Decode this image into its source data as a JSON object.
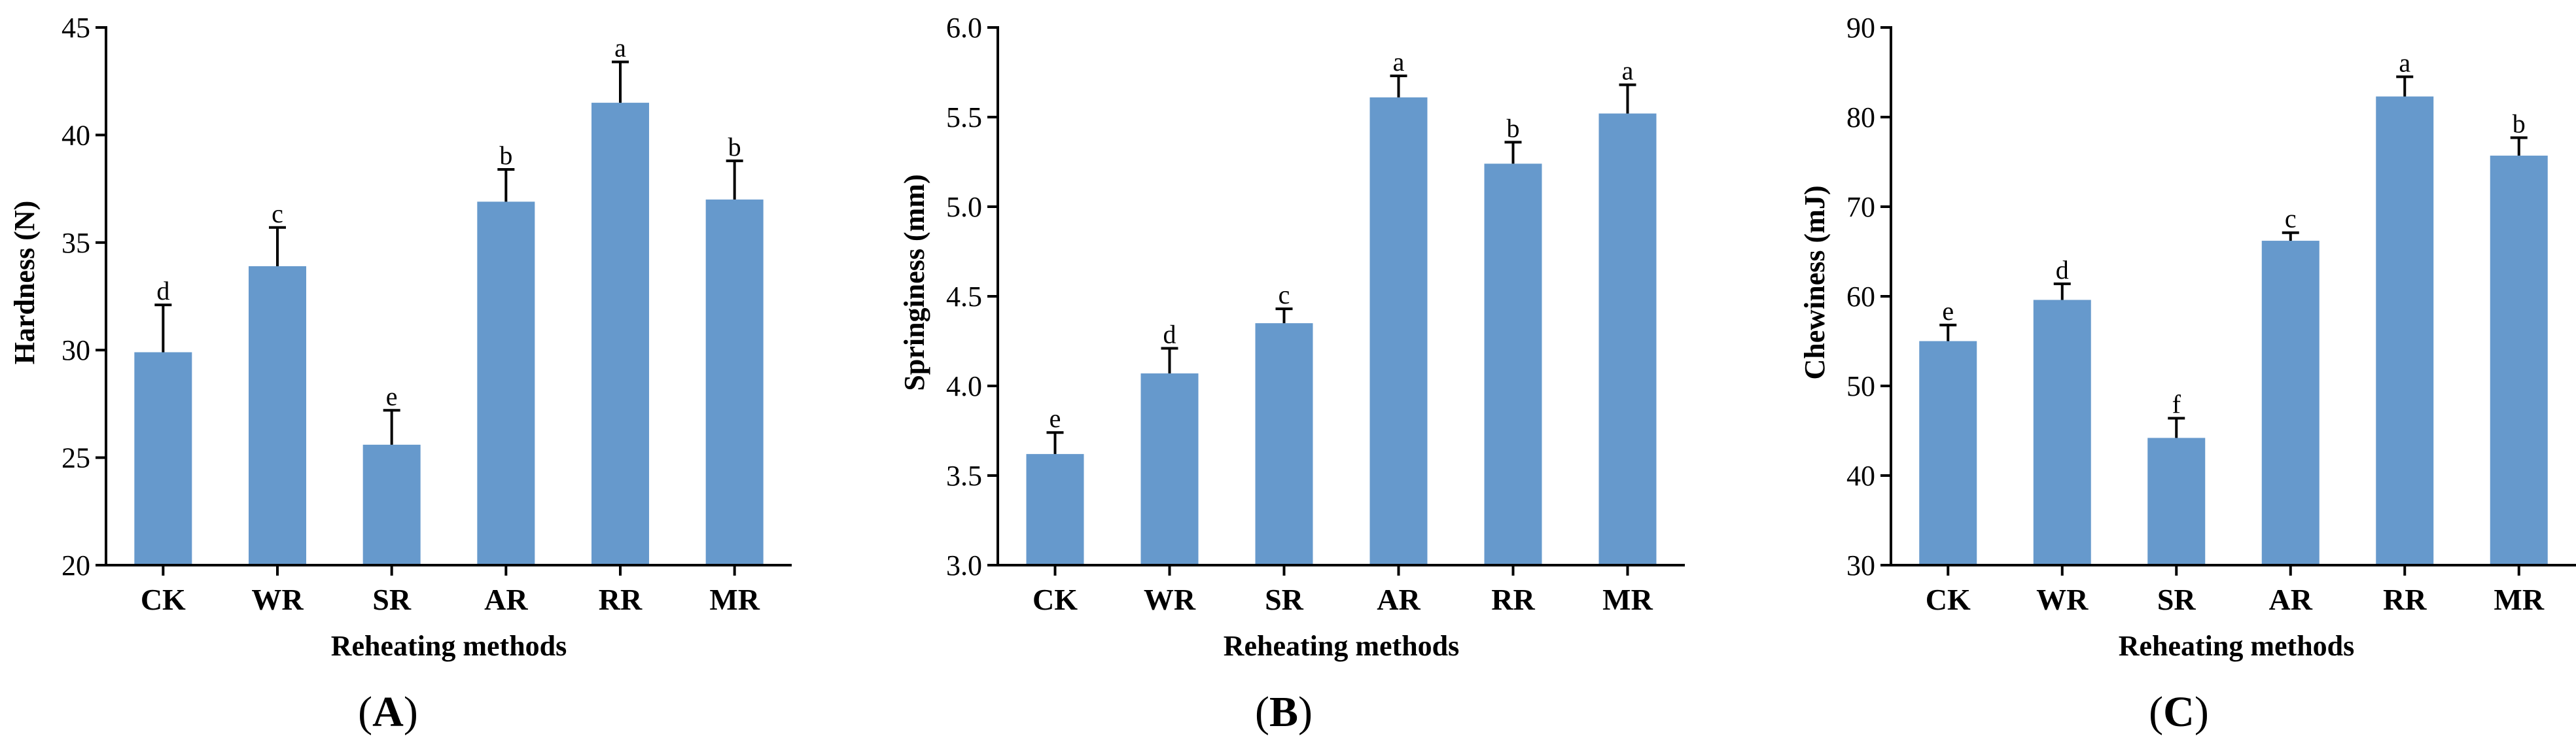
{
  "chart_data": [
    {
      "type": "bar",
      "panel": "A",
      "title": "",
      "xlabel": "Reheating methods",
      "ylabel": "Hardness (N)",
      "ylim": [
        20,
        45
      ],
      "yticks": [
        "20",
        "25",
        "30",
        "35",
        "40",
        "45"
      ],
      "categories": [
        "CK",
        "WR",
        "SR",
        "AR",
        "RR",
        "MR"
      ],
      "values": [
        29.9,
        33.9,
        25.6,
        36.9,
        41.5,
        37.0
      ],
      "errors": [
        2.2,
        1.8,
        1.6,
        1.5,
        1.9,
        1.8
      ],
      "letters": [
        "d",
        "c",
        "e",
        "b",
        "a",
        "b"
      ],
      "color": "#6699cc"
    },
    {
      "type": "bar",
      "panel": "B",
      "title": "",
      "xlabel": "Reheating methods",
      "ylabel": "Springiness (mm)",
      "ylim": [
        3.0,
        6.0
      ],
      "yticks": [
        "3.0",
        "3.5",
        "4.0",
        "4.5",
        "5.0",
        "5.5",
        "6.0"
      ],
      "categories": [
        "CK",
        "WR",
        "SR",
        "AR",
        "RR",
        "MR"
      ],
      "values": [
        3.62,
        4.07,
        4.35,
        5.61,
        5.24,
        5.52
      ],
      "errors": [
        0.12,
        0.14,
        0.08,
        0.12,
        0.12,
        0.16
      ],
      "letters": [
        "e",
        "d",
        "c",
        "a",
        "b",
        "a"
      ],
      "color": "#6699cc"
    },
    {
      "type": "bar",
      "panel": "C",
      "title": "",
      "xlabel": "Reheating methods",
      "ylabel": "Chewiness (mJ)",
      "ylim": [
        30,
        90
      ],
      "yticks": [
        "30",
        "40",
        "50",
        "60",
        "70",
        "80",
        "90"
      ],
      "categories": [
        "CK",
        "WR",
        "SR",
        "AR",
        "RR",
        "MR"
      ],
      "values": [
        55.0,
        59.6,
        44.2,
        66.2,
        82.3,
        75.7
      ],
      "errors": [
        1.8,
        1.8,
        2.2,
        0.9,
        2.2,
        2.0
      ],
      "letters": [
        "e",
        "d",
        "f",
        "c",
        "a",
        "b"
      ],
      "color": "#6699cc"
    }
  ]
}
